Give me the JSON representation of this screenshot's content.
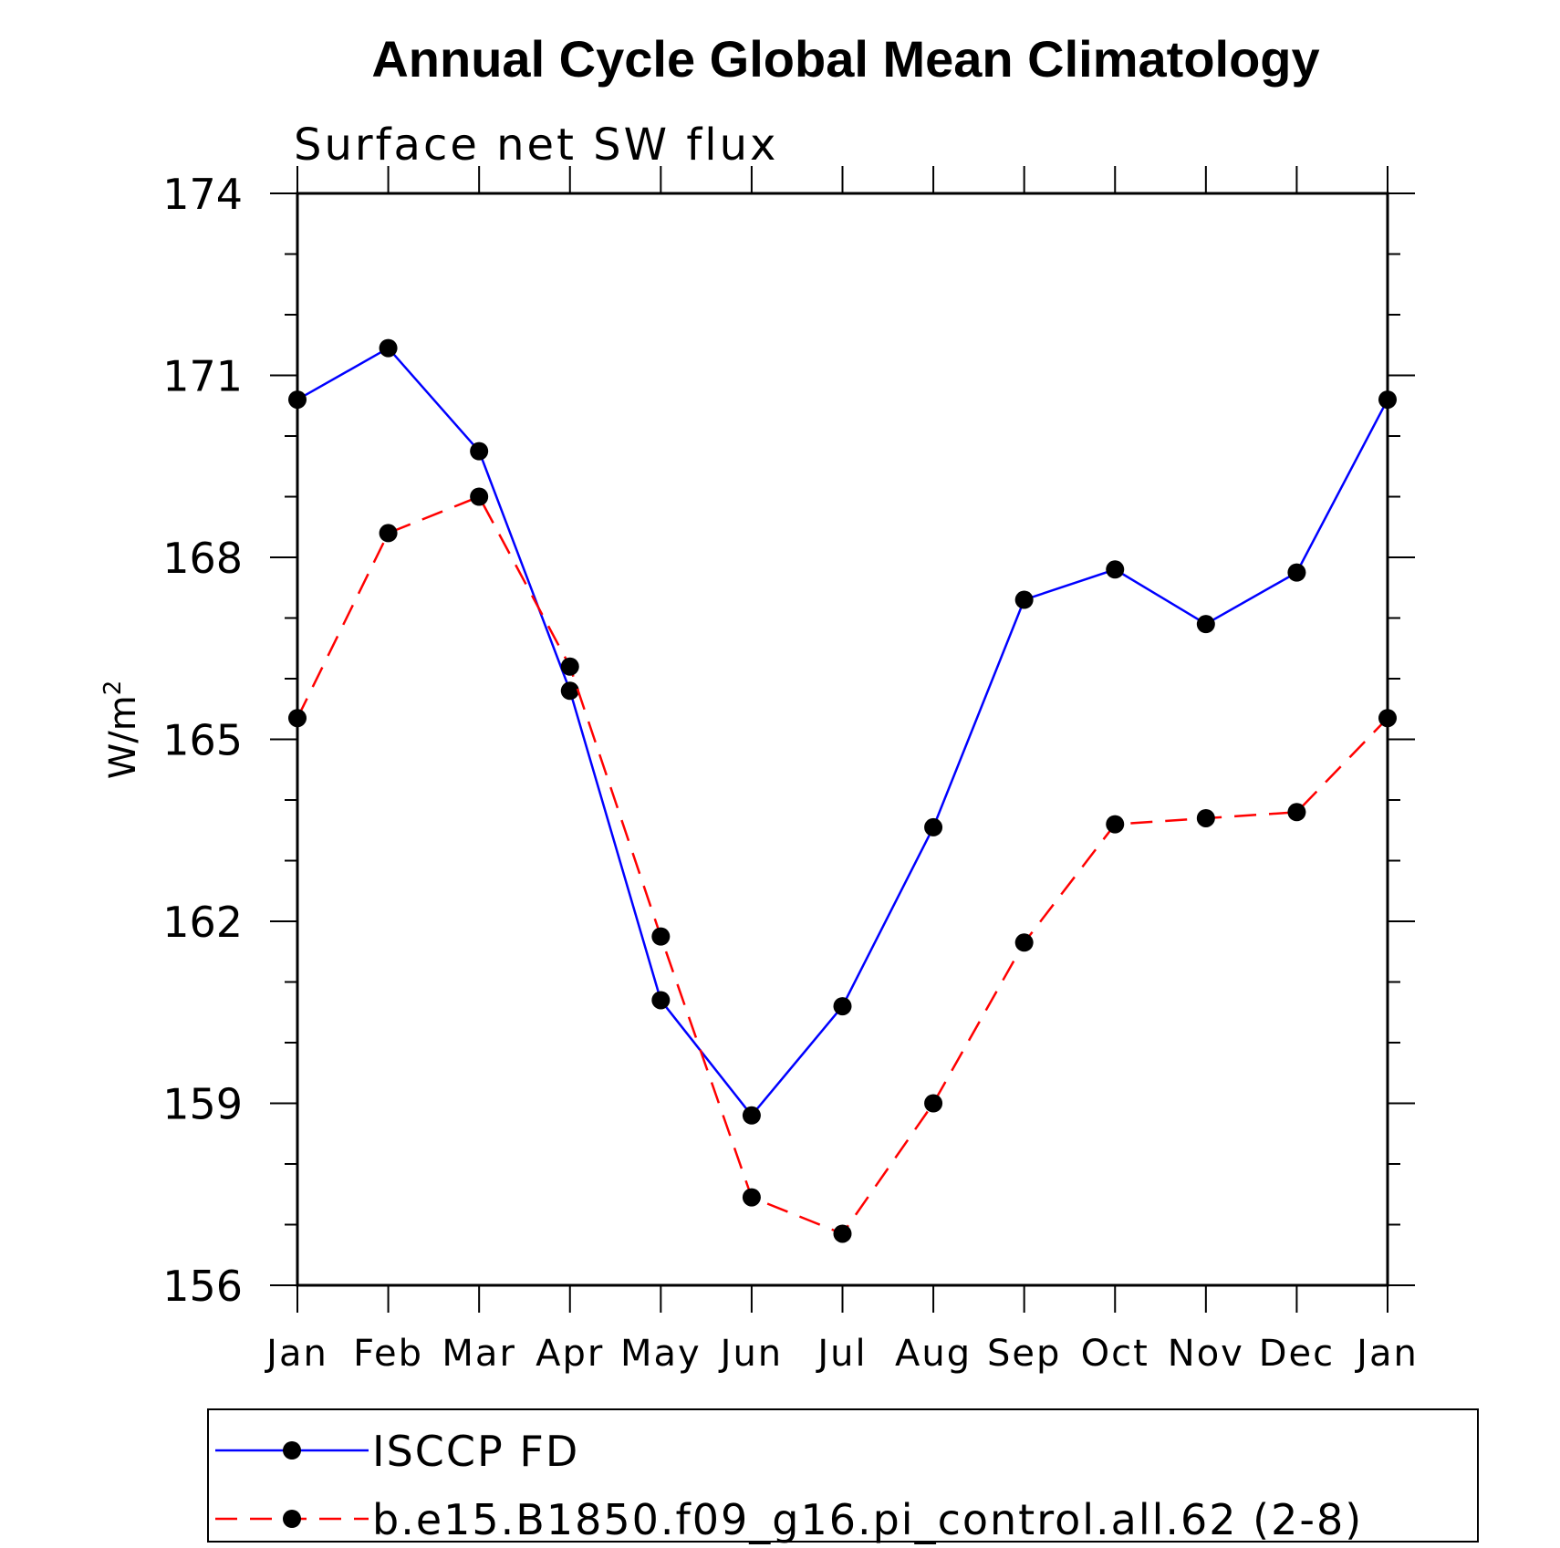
{
  "chart_data": {
    "type": "line",
    "title": "Annual Cycle Global Mean Climatology",
    "subtitle": "Surface net SW flux",
    "ylabel": "W/m",
    "ylabel_superscript": "2",
    "xlabel": "",
    "categories": [
      "Jan",
      "Feb",
      "Mar",
      "Apr",
      "May",
      "Jun",
      "Jul",
      "Aug",
      "Sep",
      "Oct",
      "Nov",
      "Dec",
      "Jan"
    ],
    "ylim": [
      156,
      174
    ],
    "yticks": [
      "156",
      "159",
      "162",
      "165",
      "168",
      "171",
      "174"
    ],
    "series": [
      {
        "name": "ISCCP FD",
        "color": "#0000ff",
        "dash": "solid",
        "values": [
          170.6,
          171.45,
          169.75,
          165.8,
          160.7,
          158.8,
          160.6,
          163.55,
          167.3,
          167.8,
          166.9,
          167.75,
          170.6
        ]
      },
      {
        "name": "b.e15.B1850.f09_g16.pi_control.all.62 (2-8)",
        "color": "#ff0000",
        "dash": "dashed",
        "values": [
          165.35,
          168.4,
          169.0,
          166.2,
          161.75,
          157.45,
          156.85,
          159.0,
          161.65,
          163.6,
          163.7,
          163.8,
          165.35
        ]
      }
    ],
    "marker_color": "#000000",
    "grid": false,
    "legend_position": "bottom"
  }
}
